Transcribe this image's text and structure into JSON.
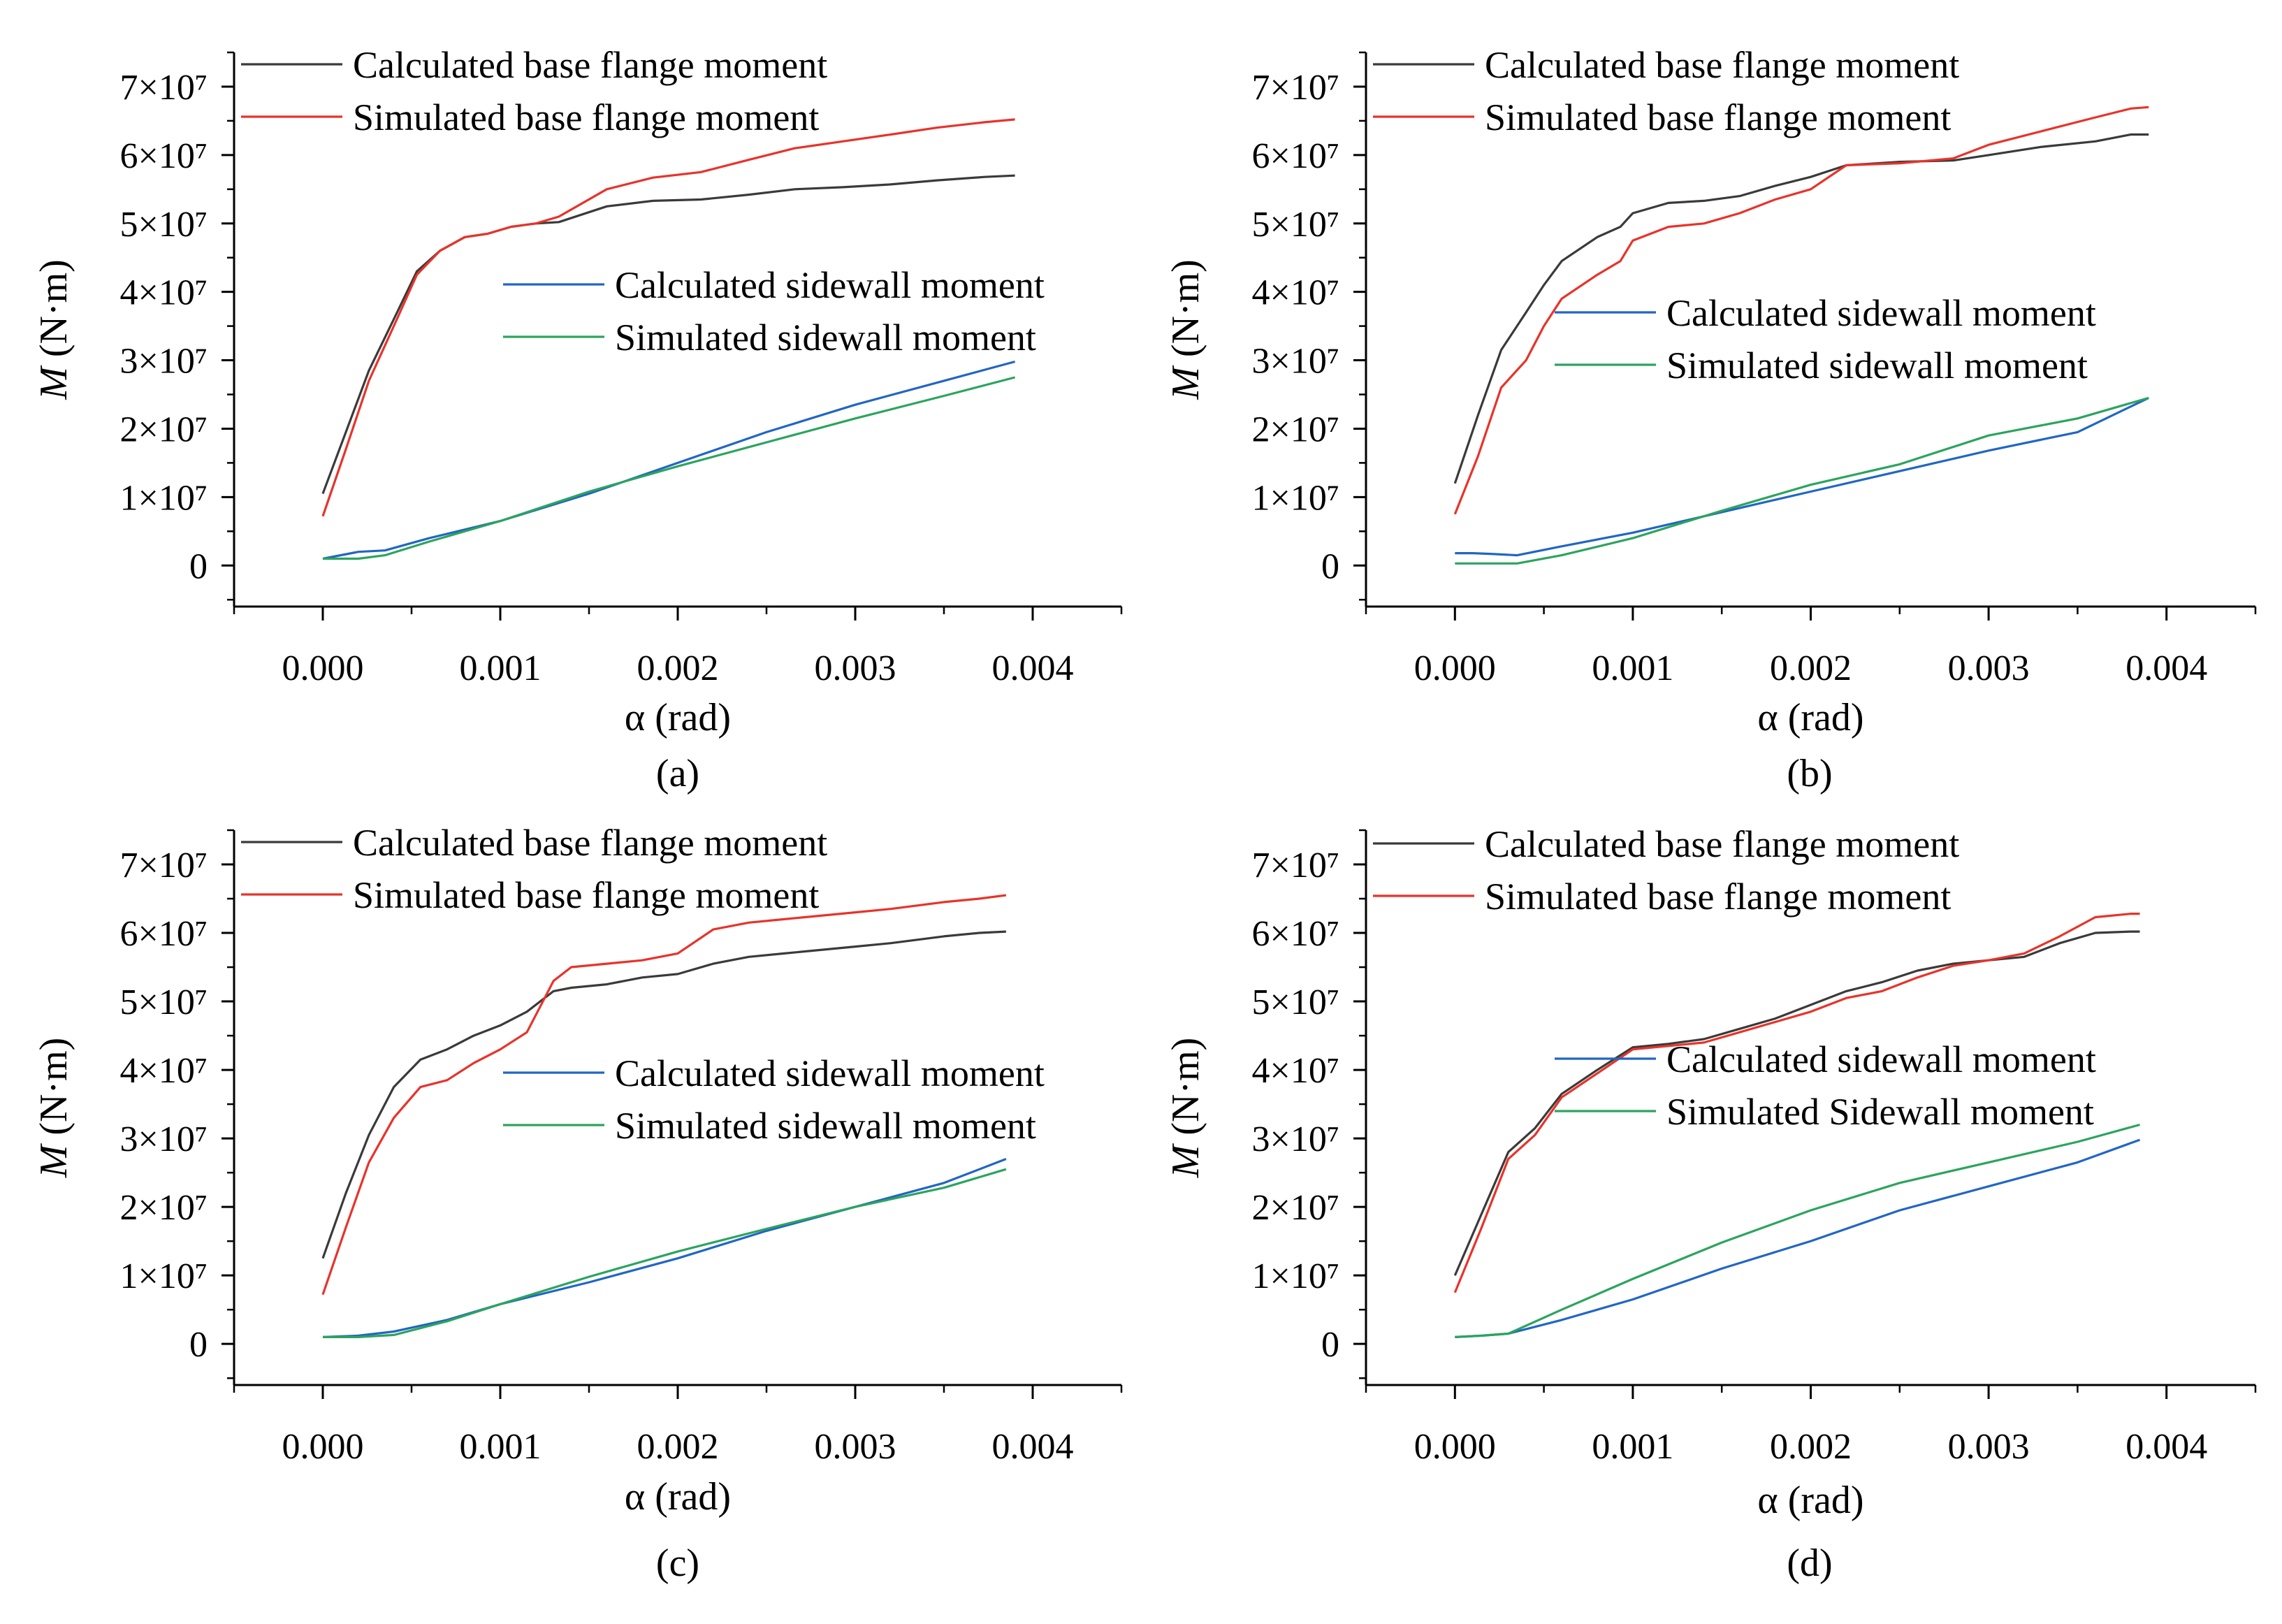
{
  "figure": {
    "colors": {
      "calc_base": "#3a3a3a",
      "sim_base": "#e8332a",
      "calc_side": "#2166c4",
      "sim_side": "#2ca45e"
    }
  },
  "chart_data": [
    {
      "type": "line",
      "panel": "(a)",
      "xlabel": "α (rad)",
      "ylabel": "M (N·m)",
      "xlim": [
        -0.0005,
        0.0045
      ],
      "ylim": [
        -6000000,
        75000000
      ],
      "xticks": [
        "0.000",
        "0.001",
        "0.002",
        "0.003",
        "0.004"
      ],
      "yticks": [
        "0",
        "1×10⁷",
        "2×10⁷",
        "3×10⁷",
        "4×10⁷",
        "5×10⁷",
        "6×10⁷",
        "7×10⁷"
      ],
      "series": [
        {
          "name": "Calculated  base flange moment",
          "color_key": "calc_base",
          "x": [
            0,
            0.00013,
            0.00026,
            0.0004,
            0.00053,
            0.00066,
            0.0008,
            0.00093,
            0.00106,
            0.0012,
            0.00133,
            0.0016,
            0.00186,
            0.00213,
            0.0024,
            0.00266,
            0.00293,
            0.0032,
            0.00346,
            0.00373,
            0.0039
          ],
          "y": [
            10500000,
            19500000,
            28500000,
            36000000,
            43000000,
            46000000,
            48000000,
            48500000,
            49500000,
            50000000,
            50200000,
            52500000,
            53300000,
            53500000,
            54200000,
            55000000,
            55300000,
            55700000,
            56300000,
            56800000,
            57000000
          ]
        },
        {
          "name": "Simulated base flange moment",
          "color_key": "sim_base",
          "x": [
            0,
            0.00013,
            0.00026,
            0.0004,
            0.00053,
            0.00066,
            0.0008,
            0.00093,
            0.00106,
            0.0012,
            0.00133,
            0.0016,
            0.00186,
            0.00213,
            0.0024,
            0.00266,
            0.00293,
            0.0032,
            0.00346,
            0.00373,
            0.0039
          ],
          "y": [
            7200000,
            17000000,
            27000000,
            35000000,
            42500000,
            46000000,
            48000000,
            48500000,
            49500000,
            50000000,
            51000000,
            55000000,
            56700000,
            57500000,
            59300000,
            61000000,
            62000000,
            63000000,
            64000000,
            64800000,
            65200000
          ]
        },
        {
          "name": "Calculated sidewall moment",
          "color_key": "calc_side",
          "x": [
            0,
            0.0002,
            0.00035,
            0.0006,
            0.001,
            0.0015,
            0.002,
            0.0025,
            0.003,
            0.0035,
            0.0039
          ],
          "y": [
            1000000,
            2000000,
            2200000,
            4000000,
            6500000,
            10500000,
            15000000,
            19500000,
            23500000,
            27000000,
            29800000
          ]
        },
        {
          "name": "Simulated sidewall moment",
          "color_key": "sim_side",
          "x": [
            0,
            0.0002,
            0.00035,
            0.0006,
            0.001,
            0.0015,
            0.002,
            0.0025,
            0.003,
            0.0035,
            0.0039
          ],
          "y": [
            1000000,
            1000000,
            1500000,
            3500000,
            6500000,
            10800000,
            14500000,
            18000000,
            21500000,
            24800000,
            27500000
          ]
        }
      ]
    },
    {
      "type": "line",
      "panel": "(b)",
      "xlabel": "α (rad)",
      "ylabel": "M (N·m)",
      "xlim": [
        -0.0005,
        0.0045
      ],
      "ylim": [
        -6000000,
        75000000
      ],
      "xticks": [
        "0.000",
        "0.001",
        "0.002",
        "0.003",
        "0.004"
      ],
      "yticks": [
        "0",
        "1×10⁷",
        "2×10⁷",
        "3×10⁷",
        "4×10⁷",
        "5×10⁷",
        "6×10⁷",
        "7×10⁷"
      ],
      "series": [
        {
          "name": "Calculated  base flange moment",
          "color_key": "calc_base",
          "x": [
            0,
            0.00013,
            0.00026,
            0.0004,
            0.0005,
            0.0006,
            0.0008,
            0.00093,
            0.001,
            0.0012,
            0.0014,
            0.0016,
            0.0018,
            0.002,
            0.0022,
            0.0025,
            0.0028,
            0.003,
            0.0033,
            0.0036,
            0.0038,
            0.0039
          ],
          "y": [
            12000000,
            22000000,
            31500000,
            37000000,
            41000000,
            44500000,
            48000000,
            49500000,
            51500000,
            53000000,
            53300000,
            54000000,
            55500000,
            56800000,
            58500000,
            59000000,
            59200000,
            60000000,
            61200000,
            62000000,
            63000000,
            63000000
          ]
        },
        {
          "name": "Simulated base flange moment",
          "color_key": "sim_base",
          "x": [
            0,
            0.00013,
            0.00026,
            0.0004,
            0.0005,
            0.0006,
            0.0008,
            0.00093,
            0.001,
            0.0012,
            0.0014,
            0.0016,
            0.0018,
            0.002,
            0.0022,
            0.0025,
            0.0028,
            0.003,
            0.0033,
            0.0036,
            0.0038,
            0.0039
          ],
          "y": [
            7500000,
            16000000,
            26000000,
            30000000,
            35000000,
            39000000,
            42500000,
            44500000,
            47500000,
            49500000,
            50000000,
            51500000,
            53500000,
            55000000,
            58500000,
            58800000,
            59500000,
            61500000,
            63500000,
            65500000,
            66800000,
            67000000
          ]
        },
        {
          "name": "Calculated sidewall moment",
          "color_key": "calc_side",
          "x": [
            0,
            0.0001,
            0.0002,
            0.00035,
            0.0006,
            0.001,
            0.0015,
            0.002,
            0.0025,
            0.003,
            0.0035,
            0.0039
          ],
          "y": [
            1800000,
            1800000,
            1700000,
            1500000,
            2800000,
            4800000,
            7800000,
            10800000,
            13800000,
            16800000,
            19500000,
            24500000
          ]
        },
        {
          "name": "Simulated sidewall moment",
          "color_key": "sim_side",
          "x": [
            0,
            0.0001,
            0.0002,
            0.00035,
            0.0006,
            0.001,
            0.0015,
            0.002,
            0.0025,
            0.003,
            0.0035,
            0.0039
          ],
          "y": [
            300000,
            300000,
            300000,
            300000,
            1500000,
            4000000,
            8000000,
            11800000,
            14800000,
            19000000,
            21500000,
            24500000
          ]
        }
      ]
    },
    {
      "type": "line",
      "panel": "(c)",
      "xlabel": "α (rad)",
      "ylabel": "M (N·m)",
      "xlim": [
        -0.0005,
        0.0045
      ],
      "ylim": [
        -6000000,
        75000000
      ],
      "xticks": [
        "0.000",
        "0.001",
        "0.002",
        "0.003",
        "0.004"
      ],
      "yticks": [
        "0",
        "1×10⁷",
        "2×10⁷",
        "3×10⁷",
        "4×10⁷",
        "5×10⁷",
        "6×10⁷",
        "7×10⁷"
      ],
      "series": [
        {
          "name": "Calculated  base flange moment",
          "color_key": "calc_base",
          "x": [
            0,
            0.00013,
            0.00026,
            0.0004,
            0.00055,
            0.0007,
            0.00085,
            0.001,
            0.00115,
            0.0013,
            0.0014,
            0.0016,
            0.0018,
            0.002,
            0.0022,
            0.0024,
            0.0026,
            0.0028,
            0.003,
            0.0032,
            0.0035,
            0.0037,
            0.00385
          ],
          "y": [
            12500000,
            22000000,
            30500000,
            37500000,
            41500000,
            43000000,
            45000000,
            46500000,
            48500000,
            51500000,
            52000000,
            52500000,
            53500000,
            54000000,
            55500000,
            56500000,
            57000000,
            57500000,
            58000000,
            58500000,
            59500000,
            60000000,
            60200000
          ]
        },
        {
          "name": "Simulated base flange moment",
          "color_key": "sim_base",
          "x": [
            0,
            0.00013,
            0.00026,
            0.0004,
            0.00055,
            0.0007,
            0.00085,
            0.001,
            0.00115,
            0.0013,
            0.0014,
            0.0016,
            0.0018,
            0.002,
            0.0022,
            0.0024,
            0.0026,
            0.0028,
            0.003,
            0.0032,
            0.0035,
            0.0037,
            0.00385
          ],
          "y": [
            7200000,
            17000000,
            26500000,
            33000000,
            37500000,
            38500000,
            41000000,
            43000000,
            45500000,
            53000000,
            55000000,
            55500000,
            56000000,
            57000000,
            60500000,
            61500000,
            62000000,
            62500000,
            63000000,
            63500000,
            64500000,
            65000000,
            65500000
          ]
        },
        {
          "name": "Calculated sidewall moment",
          "color_key": "calc_side",
          "x": [
            0,
            0.0002,
            0.0004,
            0.0007,
            0.001,
            0.0015,
            0.002,
            0.0025,
            0.003,
            0.0035,
            0.00385
          ],
          "y": [
            1000000,
            1200000,
            1800000,
            3500000,
            5800000,
            9000000,
            12500000,
            16500000,
            20000000,
            23500000,
            27000000
          ]
        },
        {
          "name": "Simulated sidewall moment",
          "color_key": "sim_side",
          "x": [
            0,
            0.0002,
            0.0004,
            0.0007,
            0.001,
            0.0015,
            0.002,
            0.0025,
            0.003,
            0.0035,
            0.00385
          ],
          "y": [
            1000000,
            1000000,
            1300000,
            3300000,
            5800000,
            9800000,
            13500000,
            16800000,
            20000000,
            22800000,
            25500000
          ]
        }
      ]
    },
    {
      "type": "line",
      "panel": "(d)",
      "xlabel": "α (rad)",
      "ylabel": "M (N·m)",
      "xlim": [
        -0.0005,
        0.0045
      ],
      "ylim": [
        -6000000,
        75000000
      ],
      "xticks": [
        "0.000",
        "0.001",
        "0.002",
        "0.003",
        "0.004"
      ],
      "yticks": [
        "0",
        "1×10⁷",
        "2×10⁷",
        "3×10⁷",
        "4×10⁷",
        "5×10⁷",
        "6×10⁷",
        "7×10⁷"
      ],
      "series": [
        {
          "name": "Calculated  base flange moment",
          "color_key": "calc_base",
          "x": [
            0,
            0.00015,
            0.0003,
            0.00045,
            0.0006,
            0.0008,
            0.001,
            0.0012,
            0.0014,
            0.0016,
            0.0018,
            0.002,
            0.0022,
            0.0024,
            0.0026,
            0.0028,
            0.003,
            0.0032,
            0.0034,
            0.0036,
            0.0038,
            0.00385
          ],
          "y": [
            10000000,
            19000000,
            28000000,
            31500000,
            36500000,
            40000000,
            43300000,
            43800000,
            44500000,
            46000000,
            47500000,
            49500000,
            51500000,
            52800000,
            54500000,
            55500000,
            56000000,
            56500000,
            58500000,
            60000000,
            60200000,
            60200000
          ]
        },
        {
          "name": "Simulated base flange moment",
          "color_key": "sim_base",
          "x": [
            0,
            0.00015,
            0.0003,
            0.00045,
            0.0006,
            0.0008,
            0.001,
            0.0012,
            0.0014,
            0.0016,
            0.0018,
            0.002,
            0.0022,
            0.0024,
            0.0026,
            0.0028,
            0.003,
            0.0032,
            0.0034,
            0.0036,
            0.0038,
            0.00385
          ],
          "y": [
            7500000,
            17000000,
            27000000,
            30500000,
            36000000,
            39500000,
            43000000,
            43500000,
            44000000,
            45500000,
            47000000,
            48500000,
            50500000,
            51500000,
            53500000,
            55200000,
            56000000,
            57000000,
            59500000,
            62300000,
            62800000,
            62800000
          ]
        },
        {
          "name": "Calculated sidewall moment",
          "color_key": "calc_side",
          "x": [
            0,
            0.00015,
            0.0003,
            0.0006,
            0.001,
            0.0015,
            0.002,
            0.0025,
            0.003,
            0.0035,
            0.00385
          ],
          "y": [
            1000000,
            1200000,
            1500000,
            3500000,
            6500000,
            11000000,
            15000000,
            19500000,
            23000000,
            26500000,
            29800000
          ]
        },
        {
          "name": "Simulated Sidewall moment",
          "color_key": "sim_side",
          "x": [
            0,
            0.00015,
            0.0003,
            0.0006,
            0.001,
            0.0015,
            0.002,
            0.0025,
            0.003,
            0.0035,
            0.00385
          ],
          "y": [
            1000000,
            1200000,
            1500000,
            5000000,
            9500000,
            14800000,
            19500000,
            23500000,
            26500000,
            29500000,
            32000000
          ]
        }
      ]
    }
  ]
}
